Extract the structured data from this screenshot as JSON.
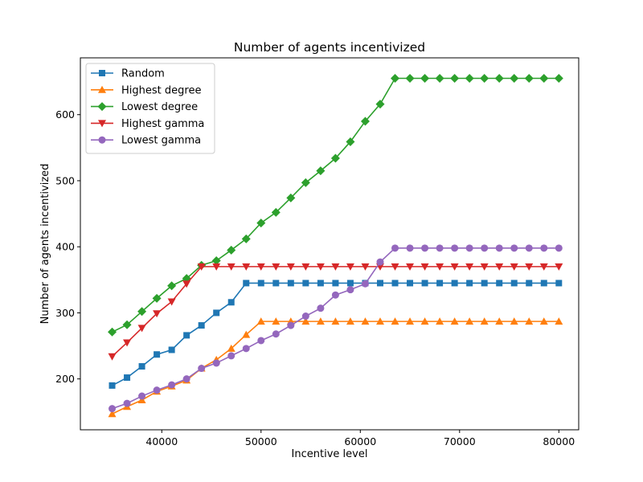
{
  "chart_data": {
    "type": "line",
    "title": "Number of agents incentivized",
    "xlabel": "Incentive level",
    "ylabel": "Number of agents incentivized",
    "xlim": [
      31800,
      82000
    ],
    "ylim": [
      123,
      686
    ],
    "xticks": [
      40000,
      50000,
      60000,
      70000,
      80000
    ],
    "yticks": [
      200,
      300,
      400,
      500,
      600
    ],
    "grid": false,
    "legend_position": "upper-left",
    "x": [
      35000,
      36500,
      38000,
      39500,
      41000,
      42500,
      44000,
      45500,
      47000,
      48500,
      50000,
      51500,
      53000,
      54500,
      56000,
      57500,
      59000,
      60500,
      62000,
      63500,
      65000,
      66500,
      68000,
      69500,
      71000,
      72500,
      74000,
      75500,
      77000,
      78500,
      80000
    ],
    "series": [
      {
        "name": "Random",
        "color": "#1f77b4",
        "marker": "square",
        "values": [
          190,
          202,
          219,
          237,
          244,
          266,
          281,
          300,
          316,
          345,
          345,
          345,
          345,
          345,
          345,
          345,
          345,
          345,
          345,
          345,
          345,
          345,
          345,
          345,
          345,
          345,
          345,
          345,
          345,
          345,
          345
        ]
      },
      {
        "name": "Highest degree",
        "color": "#ff7f0e",
        "marker": "triangle-up",
        "values": [
          147,
          158,
          168,
          181,
          189,
          198,
          216,
          229,
          246,
          267,
          287,
          287,
          287,
          287,
          287,
          287,
          287,
          287,
          287,
          287,
          287,
          287,
          287,
          287,
          287,
          287,
          287,
          287,
          287,
          287,
          287
        ]
      },
      {
        "name": "Lowest degree",
        "color": "#2ca02c",
        "marker": "diamond",
        "values": [
          271,
          282,
          302,
          322,
          341,
          352,
          372,
          379,
          395,
          412,
          436,
          452,
          474,
          497,
          515,
          534,
          559,
          590,
          616,
          655,
          655,
          655,
          655,
          655,
          655,
          655,
          655,
          655,
          655,
          655,
          655
        ]
      },
      {
        "name": "Highest gamma",
        "color": "#d62728",
        "marker": "triangle-down",
        "values": [
          234,
          255,
          277,
          299,
          317,
          344,
          370,
          370,
          370,
          370,
          370,
          370,
          370,
          370,
          370,
          370,
          370,
          370,
          370,
          370,
          370,
          370,
          370,
          370,
          370,
          370,
          370,
          370,
          370,
          370,
          370
        ]
      },
      {
        "name": "Lowest gamma",
        "color": "#9467bd",
        "marker": "circle",
        "values": [
          155,
          163,
          174,
          183,
          191,
          200,
          216,
          224,
          235,
          246,
          258,
          268,
          281,
          295,
          307,
          327,
          335,
          344,
          377,
          398,
          398,
          398,
          398,
          398,
          398,
          398,
          398,
          398,
          398,
          398,
          398
        ]
      }
    ]
  }
}
